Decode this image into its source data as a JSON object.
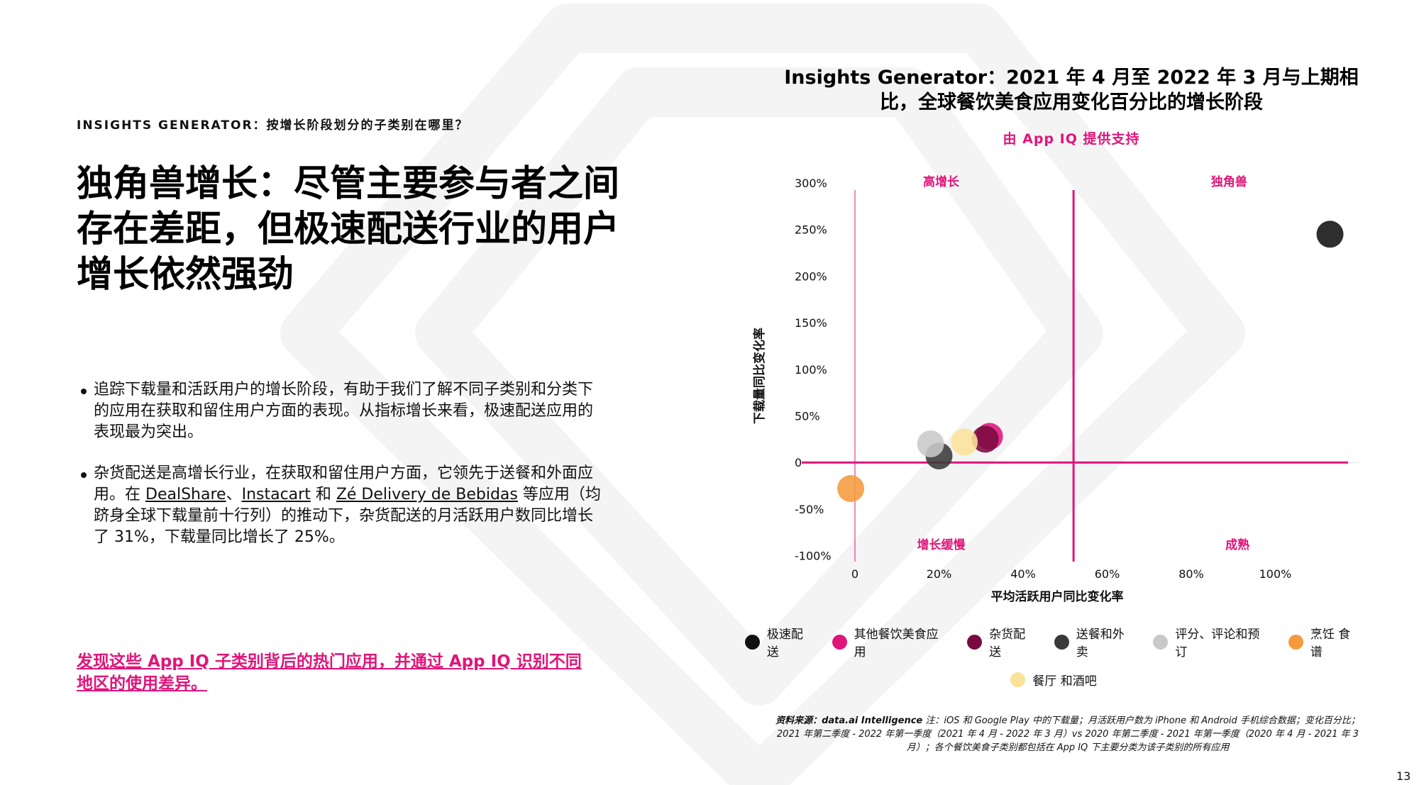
{
  "header": {
    "eyebrow": "INSIGHTS GENERATOR：按增长阶段划分的子类别在哪里？",
    "headline": "独角兽增长：尽管主要参与者之间存在差距，但极速配送行业的用户增长依然强劲"
  },
  "bullets": [
    {
      "text": "追踪下载量和活跃用户的增长阶段，有助于我们了解不同子类别和分类下的应用在获取和留住用户方面的表现。从指标增长来看，极速配送应用的表现最为突出。"
    },
    {
      "text_before": "杂货配送是高增长行业，在获取和留住用户方面，它领先于送餐和外面应用。在 ",
      "link1": "DealShare",
      "sep1": "、",
      "link2": "Instacart",
      "sep2": " 和 ",
      "link3": "Zé Delivery de Bebidas",
      "text_after": " 等应用（均跻身全球下载量前十行列）的推动下，杂货配送的月活跃用户数同比增长了 31%，下载量同比增长了 25%。"
    }
  ],
  "cta": "发现这些 App IQ 子类别背后的热门应用，并通过 App IQ 识别不同地区的使用差异。",
  "chart_title": "Insights Generator：2021 年 4 月至 2022 年 3 月与上期相比，全球餐饮美食应用变化百分比的增长阶段",
  "chart_subtitle": "由 App IQ 提供支持",
  "chart_data": {
    "type": "scatter",
    "xlabel": "平均活跃用户同比变化率",
    "ylabel": "下载量同比变化率",
    "xlim": [
      0,
      120
    ],
    "ylim": [
      -100,
      300
    ],
    "x_ticks": [
      "0",
      "20%",
      "40%",
      "60%",
      "80%",
      "100%"
    ],
    "x_tick_values": [
      0,
      20,
      40,
      60,
      80,
      100
    ],
    "y_ticks": [
      "300%",
      "250%",
      "200%",
      "150%",
      "100%",
      "50%",
      "0",
      "-50%",
      "-100%"
    ],
    "y_tick_values": [
      300,
      250,
      200,
      150,
      100,
      50,
      0,
      -50,
      -100
    ],
    "quadrant_labels": {
      "top_left": "高增长",
      "top_right": "独角兽",
      "bottom_left": "增长缓慢",
      "bottom_right": "成熟"
    },
    "divider_x": 52,
    "divider_y": 0,
    "series": [
      {
        "name": "极速配送",
        "color": "#111111",
        "x": 113,
        "y": 245
      },
      {
        "name": "其他餐饮美食应用",
        "color": "#e0157a",
        "x": 32,
        "y": 28
      },
      {
        "name": "杂货配送",
        "color": "#7a0a3f",
        "x": 31,
        "y": 25
      },
      {
        "name": "送餐和外卖",
        "color": "#3a3a3a",
        "x": 20,
        "y": 7
      },
      {
        "name": "评分、评论和预订",
        "color": "#c9c9c9",
        "x": 18,
        "y": 20
      },
      {
        "name": "烹饪 食谱",
        "color": "#f59a3c",
        "x": -1,
        "y": -28
      },
      {
        "name": "餐厅 和酒吧",
        "color": "#fbe29a",
        "x": 26,
        "y": 22
      }
    ],
    "legend": "bottom"
  },
  "source": {
    "label": "资料来源：data.ai Intelligence",
    "note": "注：iOS 和 Google Play 中的下载量；月活跃用户数为 iPhone 和 Android 手机综合数据；变化百分比；2021 年第二季度 - 2022 年第一季度（2021 年 4 月 - 2022 年 3 月）vs 2020 年第二季度 - 2021 年第一季度（2020 年 4 月 - 2021 年 3 月）；各个餐饮美食子类别都包括在 App IQ 下主要分类为该子类别的所有应用"
  },
  "page_number": "13"
}
